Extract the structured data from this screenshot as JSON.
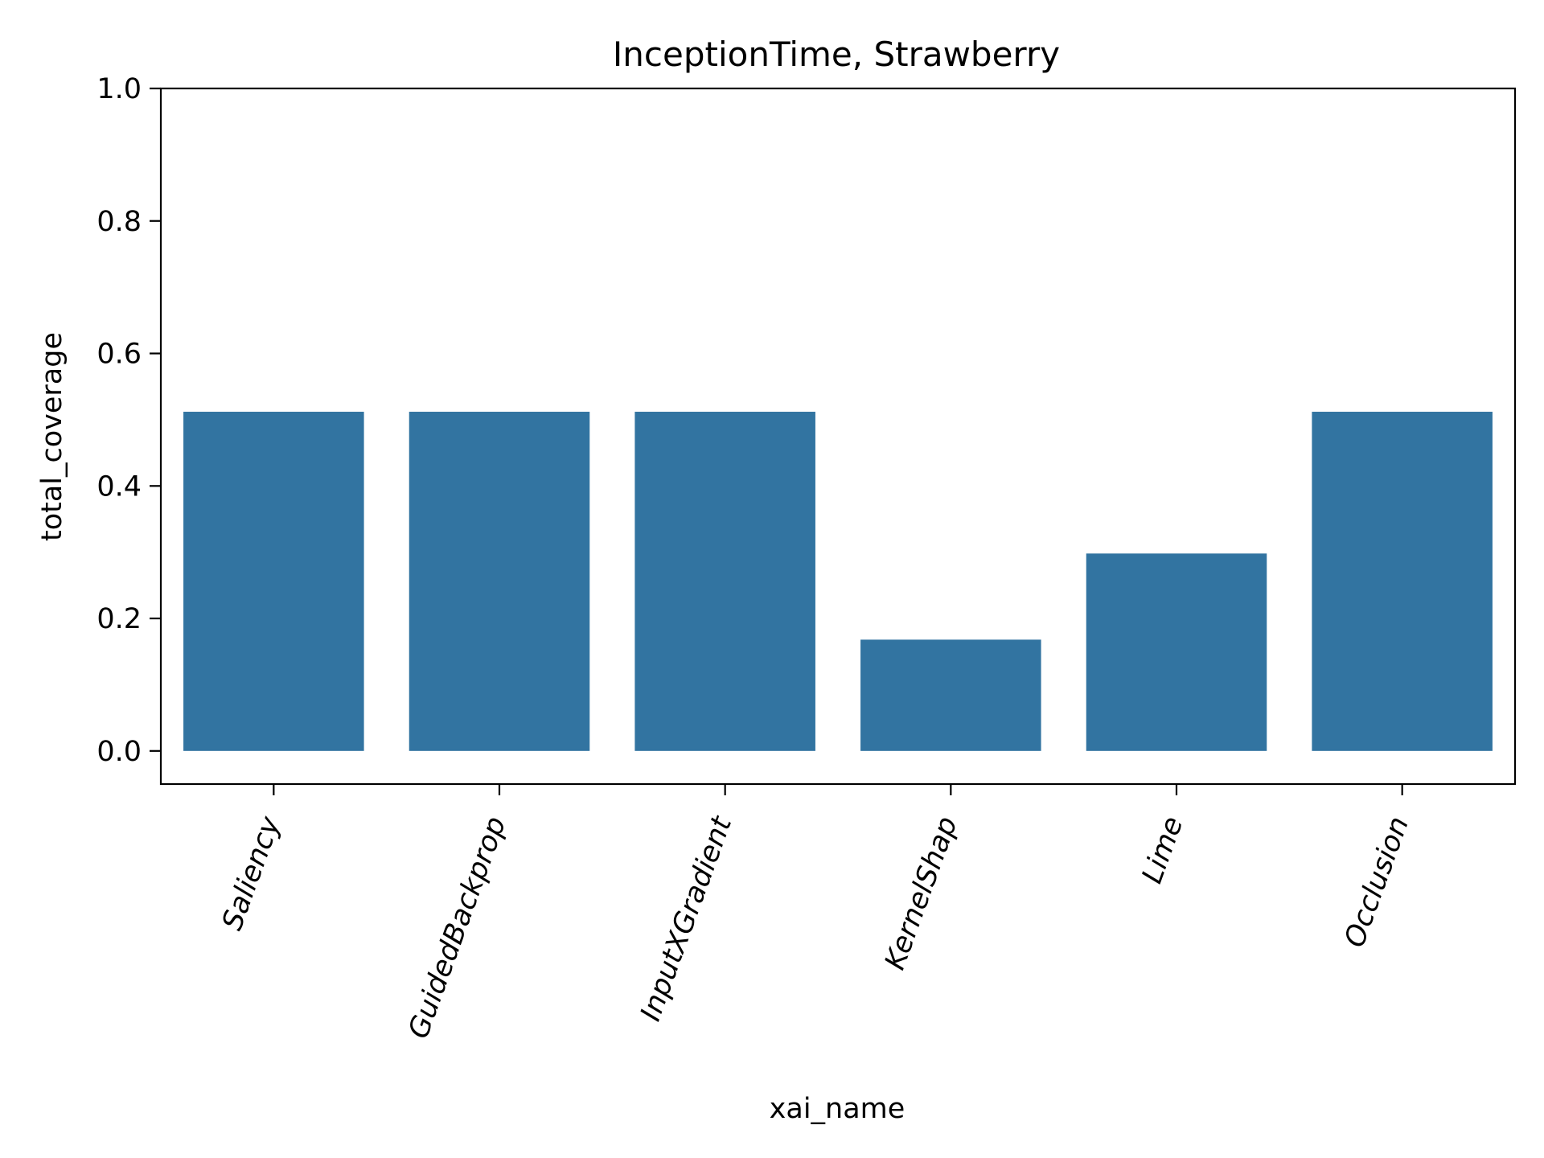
{
  "chart_data": {
    "type": "bar",
    "title": "InceptionTime, Strawberry",
    "xlabel": "xai_name",
    "ylabel": "total_coverage",
    "categories": [
      "Saliency",
      "GuidedBackprop",
      "InputXGradient",
      "KernelShap",
      "Lime",
      "Occlusion"
    ],
    "values": [
      0.512,
      0.512,
      0.512,
      0.168,
      0.298,
      0.512
    ],
    "ylim": [
      -0.05,
      1.0
    ],
    "yticks": [
      0.0,
      0.2,
      0.4,
      0.6,
      0.8,
      1.0
    ],
    "ytick_labels": [
      "0.0",
      "0.2",
      "0.4",
      "0.6",
      "0.8",
      "1.0"
    ],
    "bar_color": "#3274a1",
    "grid": false,
    "legend": "none"
  }
}
